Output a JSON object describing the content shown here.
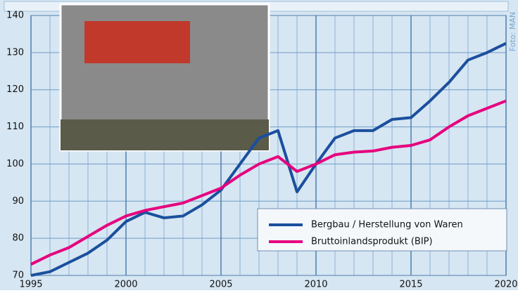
{
  "chart_data": {
    "type": "line",
    "credit": "Foto: MAN",
    "x": [
      1995,
      1996,
      1997,
      1998,
      1999,
      2000,
      2001,
      2002,
      2003,
      2004,
      2005,
      2006,
      2007,
      2008,
      2009,
      2010,
      2011,
      2012,
      2013,
      2014,
      2015,
      2016,
      2017,
      2018,
      2019,
      2020
    ],
    "series": [
      {
        "name": "Bergbau / Herstellung von Waren",
        "color": "#1b4f9e",
        "values": [
          70,
          71,
          73.5,
          76,
          79.5,
          84.5,
          87,
          85.5,
          86,
          89,
          93,
          100,
          107,
          109,
          92.5,
          100,
          107,
          109,
          109,
          112,
          112.5,
          117,
          122,
          128,
          130,
          132.5
        ]
      },
      {
        "name": "Bruttoinlandsprodukt (BIP)",
        "color": "#e6007e",
        "values": [
          73,
          75.5,
          77.5,
          80.5,
          83.5,
          86,
          87.5,
          88.5,
          89.5,
          91.5,
          93.5,
          97,
          100,
          102,
          98,
          100,
          102.5,
          103.2,
          103.5,
          104.5,
          105,
          106.5,
          110,
          113,
          115,
          117
        ]
      }
    ],
    "xlim": [
      1995,
      2020
    ],
    "xticks": [
      1995,
      2000,
      2005,
      2010,
      2015,
      2020
    ],
    "ylim": [
      70,
      140
    ],
    "yticks": [
      70,
      80,
      90,
      100,
      110,
      120,
      130,
      140
    ],
    "grid": true,
    "legend": "lower right"
  }
}
